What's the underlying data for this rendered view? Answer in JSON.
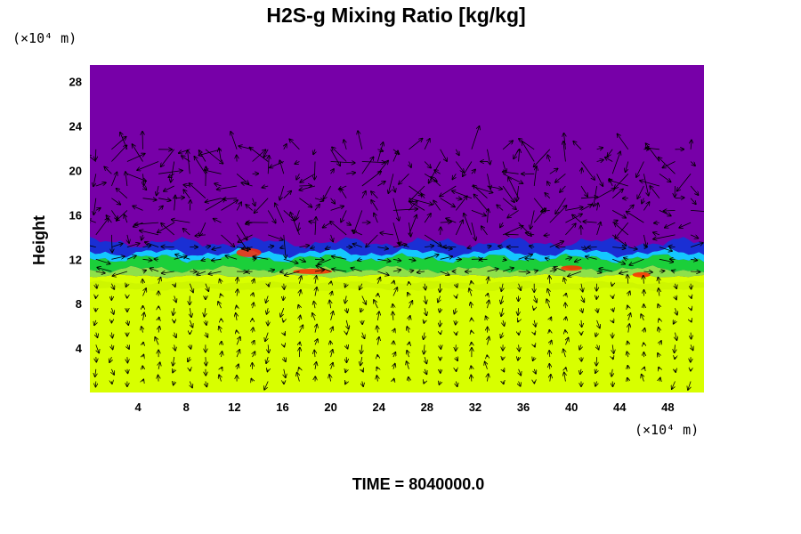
{
  "chart_data": {
    "type": "heatmap",
    "title": "H2S-g Mixing Ratio [kg/kg]",
    "xlabel": "",
    "ylabel": "Height",
    "x_unit_label": "(×10⁴ m)",
    "y_unit_label": "(×10⁴ m)",
    "xlim": [
      0,
      51
    ],
    "ylim": [
      0,
      29.5
    ],
    "x_ticks": [
      4,
      8,
      12,
      16,
      20,
      24,
      28,
      32,
      36,
      40,
      44,
      48
    ],
    "y_ticks": [
      4,
      8,
      12,
      16,
      20,
      24,
      28
    ],
    "footer": "TIME = 8040000.0",
    "colors": {
      "top": "#7700a8",
      "blue": "#1a2fd4",
      "cyan": "#14c8ff",
      "green": "#1bcf3a",
      "lightgreen": "#8ee04a",
      "yellow": "#d8ff00",
      "red": "#ff2a00"
    },
    "layers": {
      "purple_above": 13.5,
      "blue_band_center": 13.0,
      "green_band_center": 11.5,
      "yellow_below": 10.5
    },
    "vectors": "wind vector field overlay"
  }
}
